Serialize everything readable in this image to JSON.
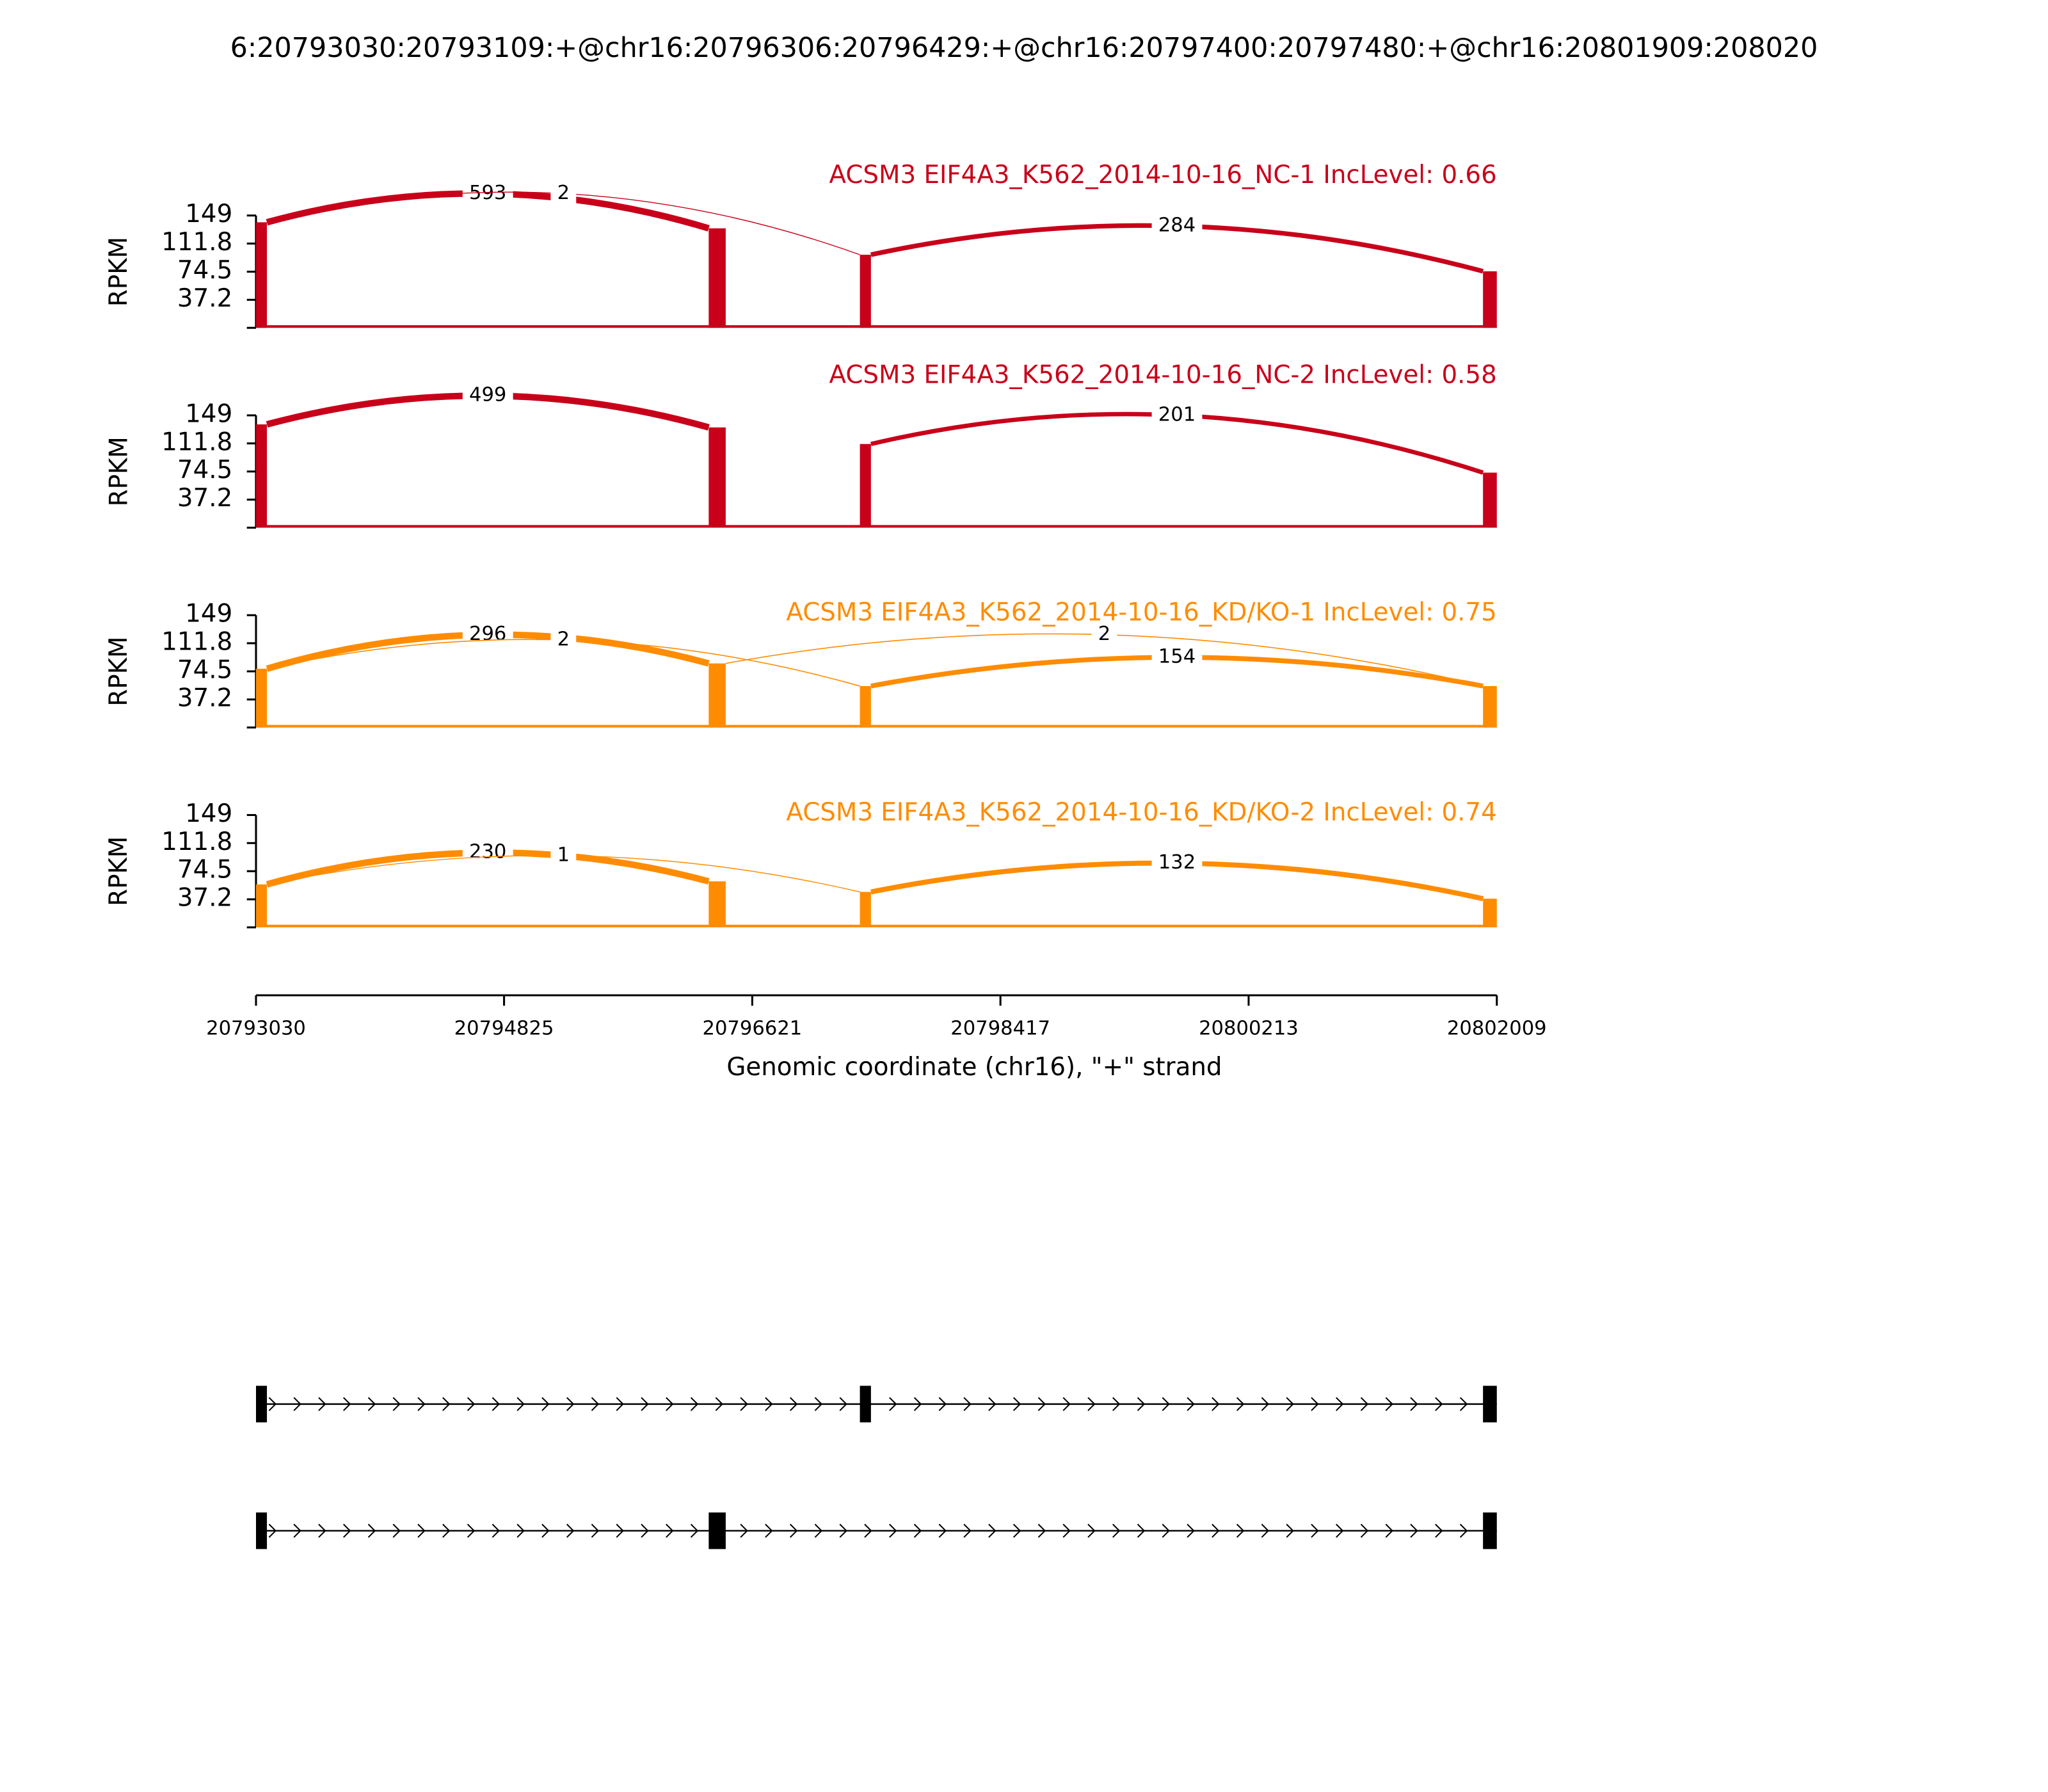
{
  "chart_data": {
    "type": "sashimi",
    "title": "6:20793030:20793109:+@chr16:20796306:20796429:+@chr16:20797400:20797480:+@chr16:20801909:208020",
    "xlim": [
      20793030,
      20802009
    ],
    "xticks": [
      20793030,
      20794825,
      20796621,
      20798417,
      20800213,
      20802009
    ],
    "xlabel": "Genomic coordinate (chr16), \"+\" strand",
    "exons": [
      [
        20793030,
        20793109
      ],
      [
        20796306,
        20796429
      ],
      [
        20797400,
        20797480
      ],
      [
        20801909,
        20802009
      ]
    ],
    "panels": [
      {
        "title": "ACSM3 EIF4A3_K562_2014-10-16_NC-1 IncLevel: 0.66",
        "color": "#c8001a",
        "ylabel": "RPKM",
        "ylim": [
          0,
          149
        ],
        "yticks": [
          37.2,
          74.5,
          111.8,
          149
        ],
        "coverage": [
          140,
          132,
          97,
          75
        ],
        "junctions": [
          {
            "start": 20793109,
            "end": 20796306,
            "count": 593
          },
          {
            "start": 20793109,
            "end": 20797400,
            "count": 2
          },
          {
            "start": 20797480,
            "end": 20801909,
            "count": 284
          }
        ]
      },
      {
        "title": "ACSM3 EIF4A3_K562_2014-10-16_NC-2 IncLevel: 0.58",
        "color": "#c8001a",
        "ylabel": "RPKM",
        "ylim": [
          0,
          149
        ],
        "yticks": [
          37.2,
          74.5,
          111.8,
          149
        ],
        "coverage": [
          137,
          133,
          111,
          73
        ],
        "junctions": [
          {
            "start": 20793109,
            "end": 20796306,
            "count": 499
          },
          {
            "start": 20797480,
            "end": 20801909,
            "count": 201
          }
        ]
      },
      {
        "title": "ACSM3 EIF4A3_K562_2014-10-16_KD/KO-1 IncLevel: 0.75",
        "color": "#ff8c00",
        "ylabel": "RPKM",
        "ylim": [
          0,
          149
        ],
        "yticks": [
          37.2,
          74.5,
          111.8,
          149
        ],
        "coverage": [
          78,
          85,
          55,
          55
        ],
        "junctions": [
          {
            "start": 20793109,
            "end": 20796306,
            "count": 296
          },
          {
            "start": 20793109,
            "end": 20797400,
            "count": 2
          },
          {
            "start": 20796429,
            "end": 20801909,
            "count": 2
          },
          {
            "start": 20797480,
            "end": 20801909,
            "count": 154
          }
        ]
      },
      {
        "title": "ACSM3 EIF4A3_K562_2014-10-16_KD/KO-2 IncLevel: 0.74",
        "color": "#ff8c00",
        "ylabel": "RPKM",
        "ylim": [
          0,
          149
        ],
        "yticks": [
          37.2,
          74.5,
          111.8,
          149
        ],
        "coverage": [
          57,
          61,
          47,
          38
        ],
        "junctions": [
          {
            "start": 20793109,
            "end": 20796306,
            "count": 230
          },
          {
            "start": 20793109,
            "end": 20797400,
            "count": 1
          },
          {
            "start": 20797480,
            "end": 20801909,
            "count": 132
          }
        ]
      }
    ],
    "transcripts": [
      [
        [
          20793030,
          20793109
        ],
        [
          20797400,
          20797480
        ],
        [
          20801909,
          20802009
        ]
      ],
      [
        [
          20793030,
          20793109
        ],
        [
          20796306,
          20796429
        ],
        [
          20801909,
          20802009
        ]
      ]
    ]
  }
}
